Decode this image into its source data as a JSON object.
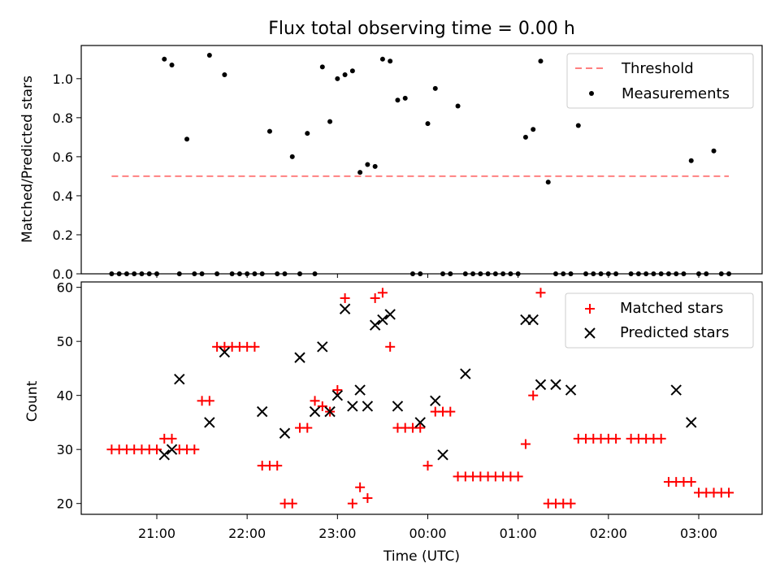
{
  "chart_data": [
    {
      "type": "scatter",
      "title": "Flux total observing time = 0.00 h",
      "ylabel": "Matched/Predicted stars",
      "xlabel": "",
      "ylim": [
        0,
        1.17
      ],
      "yticks": [
        0.0,
        0.2,
        0.4,
        0.6,
        0.8,
        1.0
      ],
      "ytick_labels": [
        "0.0",
        "0.2",
        "0.4",
        "0.6",
        "0.8",
        "1.0"
      ],
      "legend_position": "top-right",
      "threshold": {
        "name": "Threshold",
        "value": 0.5,
        "x_range": [
          "20:30",
          "03:20"
        ],
        "color": "#ff8080",
        "style": "dashed"
      },
      "series": [
        {
          "name": "Measurements",
          "color": "#000000",
          "marker": "dot",
          "x": [
            "20:30",
            "20:35",
            "20:40",
            "20:45",
            "20:50",
            "20:55",
            "21:00",
            "21:05",
            "21:10",
            "21:15",
            "21:20",
            "21:25",
            "21:30",
            "21:35",
            "21:40",
            "21:45",
            "21:50",
            "21:55",
            "22:00",
            "22:05",
            "22:10",
            "22:15",
            "22:20",
            "22:25",
            "22:30",
            "22:35",
            "22:40",
            "22:45",
            "22:50",
            "22:55",
            "23:00",
            "23:05",
            "23:10",
            "23:15",
            "23:20",
            "23:25",
            "23:30",
            "23:35",
            "23:40",
            "23:45",
            "23:50",
            "23:55",
            "00:00",
            "00:05",
            "00:10",
            "00:15",
            "00:20",
            "00:25",
            "00:30",
            "00:35",
            "00:40",
            "00:45",
            "00:50",
            "00:55",
            "01:00",
            "01:05",
            "01:10",
            "01:15",
            "01:20",
            "01:25",
            "01:30",
            "01:35",
            "01:40",
            "01:45",
            "01:50",
            "01:55",
            "02:00",
            "02:05",
            "02:15",
            "02:20",
            "02:25",
            "02:30",
            "02:35",
            "02:40",
            "02:45",
            "02:50",
            "02:55",
            "03:00",
            "03:05",
            "03:10",
            "03:15",
            "03:20"
          ],
          "y": [
            0,
            0,
            0,
            0,
            0,
            0,
            0,
            1.1,
            1.07,
            0,
            0.69,
            0,
            0,
            1.12,
            0,
            1.02,
            0,
            0,
            0,
            0,
            0,
            0.73,
            0,
            0,
            0.6,
            0,
            0.72,
            0,
            1.06,
            0.78,
            1.0,
            1.02,
            1.04,
            0.52,
            0.56,
            0.55,
            1.1,
            1.09,
            0.89,
            0.9,
            0,
            0,
            0.77,
            0.95,
            0,
            0,
            0.86,
            0,
            0,
            0,
            0,
            0,
            0,
            0,
            0,
            0.7,
            0.74,
            1.09,
            0.47,
            0,
            0,
            0,
            0.76,
            0,
            0,
            0,
            0,
            0,
            0,
            0,
            0,
            0,
            0,
            0,
            0,
            0,
            0.58,
            0,
            0,
            0.63,
            0,
            0
          ]
        }
      ]
    },
    {
      "type": "scatter",
      "title": "",
      "ylabel": "Count",
      "xlabel": "Time (UTC)",
      "ylim": [
        18,
        61
      ],
      "yticks": [
        20,
        30,
        40,
        50,
        60
      ],
      "ytick_labels": [
        "20",
        "30",
        "40",
        "50",
        "60"
      ],
      "xticks": [
        "21:00",
        "22:00",
        "23:00",
        "00:00",
        "01:00",
        "02:00",
        "03:00"
      ],
      "legend_position": "top-right",
      "series": [
        {
          "name": "Matched stars",
          "color": "#ff0000",
          "marker": "plus",
          "x": [
            "20:30",
            "20:35",
            "20:40",
            "20:45",
            "20:50",
            "20:55",
            "21:00",
            "21:05",
            "21:10",
            "21:15",
            "21:20",
            "21:25",
            "21:30",
            "21:35",
            "21:40",
            "21:45",
            "21:50",
            "21:55",
            "22:00",
            "22:05",
            "22:10",
            "22:15",
            "22:20",
            "22:25",
            "22:30",
            "22:35",
            "22:40",
            "22:45",
            "22:50",
            "22:55",
            "23:00",
            "23:05",
            "23:10",
            "23:15",
            "23:20",
            "23:25",
            "23:30",
            "23:35",
            "23:40",
            "23:45",
            "23:50",
            "23:55",
            "00:00",
            "00:05",
            "00:10",
            "00:15",
            "00:20",
            "00:25",
            "00:30",
            "00:35",
            "00:40",
            "00:45",
            "00:50",
            "00:55",
            "01:00",
            "01:05",
            "01:10",
            "01:15",
            "01:20",
            "01:25",
            "01:30",
            "01:35",
            "01:40",
            "01:45",
            "01:50",
            "01:55",
            "02:00",
            "02:05",
            "02:15",
            "02:20",
            "02:25",
            "02:30",
            "02:35",
            "02:40",
            "02:45",
            "02:50",
            "02:55",
            "03:00",
            "03:05",
            "03:10",
            "03:15",
            "03:20"
          ],
          "y": [
            30,
            30,
            30,
            30,
            30,
            30,
            30,
            32,
            32,
            30,
            30,
            30,
            39,
            39,
            49,
            49,
            49,
            49,
            49,
            49,
            27,
            27,
            27,
            20,
            20,
            34,
            34,
            39,
            38,
            37,
            41,
            58,
            20,
            23,
            21,
            58,
            59,
            49,
            34,
            34,
            34,
            34,
            27,
            37,
            37,
            37,
            25,
            25,
            25,
            25,
            25,
            25,
            25,
            25,
            25,
            31,
            40,
            59,
            20,
            20,
            20,
            20,
            32,
            32,
            32,
            32,
            32,
            32,
            32,
            32,
            32,
            32,
            32,
            24,
            24,
            24,
            24,
            22,
            22,
            22,
            22,
            22
          ]
        },
        {
          "name": "Predicted stars",
          "color": "#000000",
          "marker": "x",
          "x": [
            "21:05",
            "21:10",
            "21:15",
            "21:35",
            "21:45",
            "22:10",
            "22:25",
            "22:35",
            "22:45",
            "22:50",
            "22:55",
            "23:00",
            "23:05",
            "23:10",
            "23:15",
            "23:20",
            "23:25",
            "23:30",
            "23:35",
            "23:40",
            "23:55",
            "00:05",
            "00:10",
            "00:25",
            "01:05",
            "01:10",
            "01:15",
            "01:25",
            "01:35",
            "02:45",
            "02:55"
          ],
          "y": [
            29,
            30,
            43,
            35,
            48,
            37,
            33,
            47,
            37,
            49,
            37,
            40,
            56,
            38,
            41,
            38,
            53,
            54,
            55,
            38,
            35,
            39,
            29,
            44,
            54,
            54,
            42,
            42,
            41,
            41,
            35
          ]
        }
      ]
    }
  ]
}
